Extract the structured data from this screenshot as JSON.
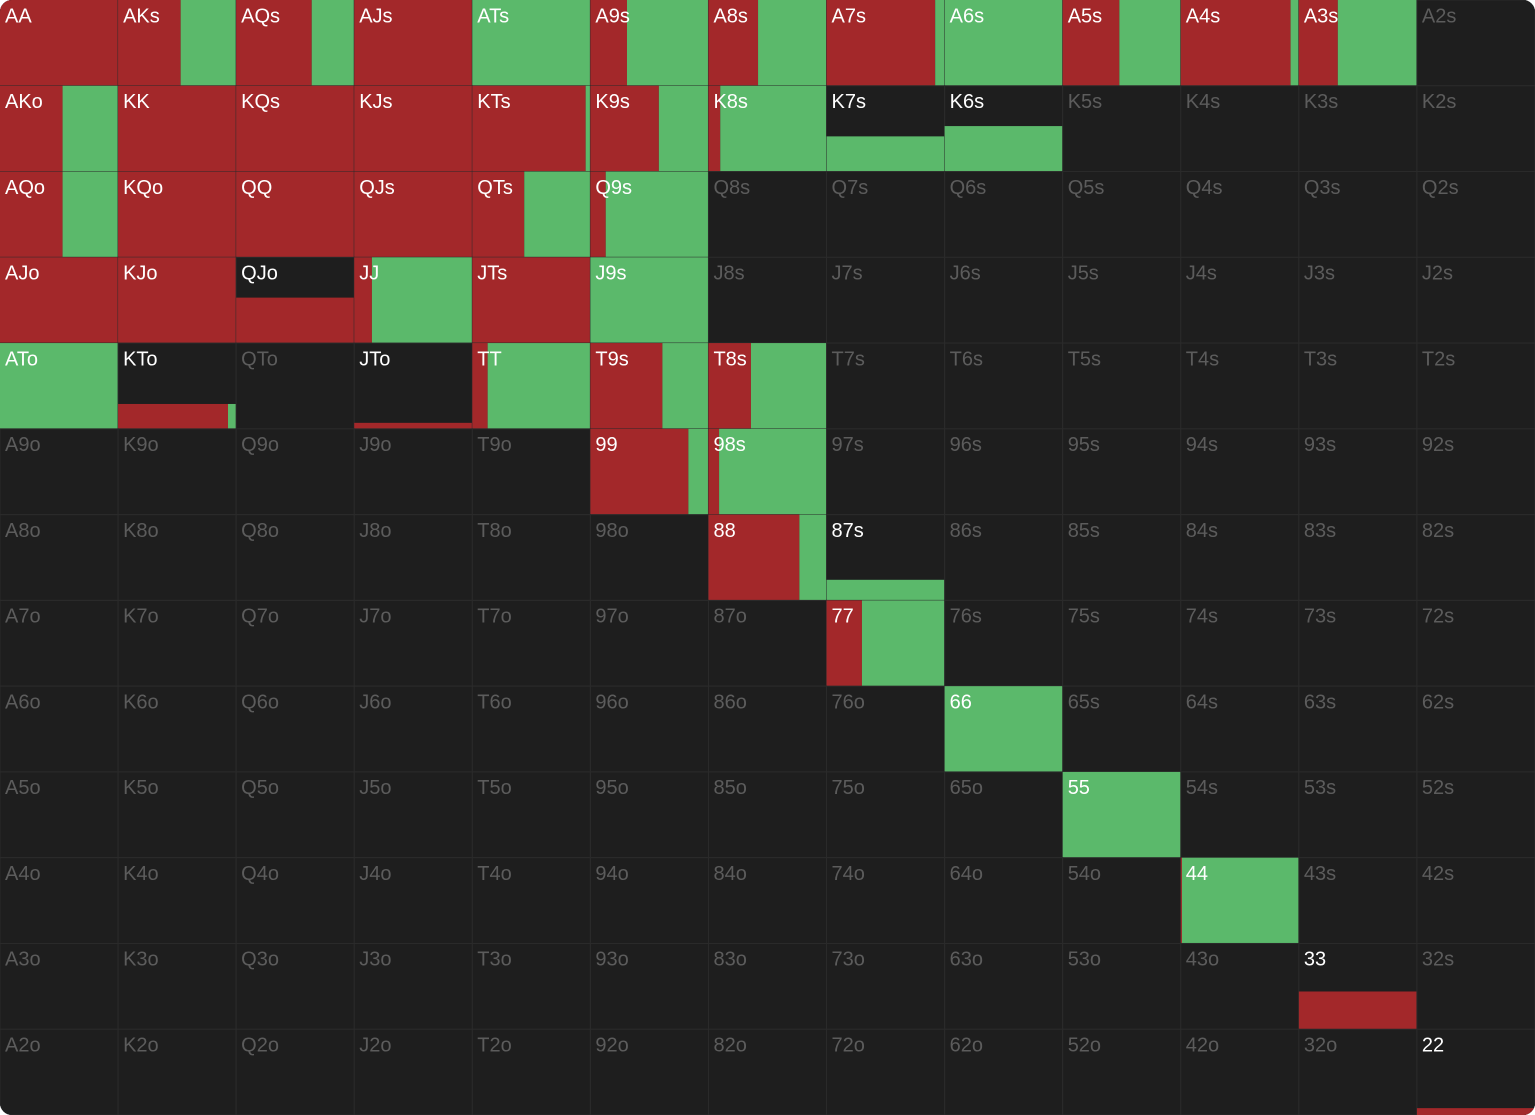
{
  "grid": {
    "labels": [
      [
        "AA",
        "AKs",
        "AQs",
        "AJs",
        "ATs",
        "A9s",
        "A8s",
        "A7s",
        "A6s",
        "A5s",
        "A4s",
        "A3s",
        "A2s"
      ],
      [
        "AKo",
        "KK",
        "KQs",
        "KJs",
        "KTs",
        "K9s",
        "K8s",
        "K7s",
        "K6s",
        "K5s",
        "K4s",
        "K3s",
        "K2s"
      ],
      [
        "AQo",
        "KQo",
        "QQ",
        "QJs",
        "QTs",
        "Q9s",
        "Q8s",
        "Q7s",
        "Q6s",
        "Q5s",
        "Q4s",
        "Q3s",
        "Q2s"
      ],
      [
        "AJo",
        "KJo",
        "QJo",
        "JJ",
        "JTs",
        "J9s",
        "J8s",
        "J7s",
        "J6s",
        "J5s",
        "J4s",
        "J3s",
        "J2s"
      ],
      [
        "ATo",
        "KTo",
        "QTo",
        "JTo",
        "TT",
        "T9s",
        "T8s",
        "T7s",
        "T6s",
        "T5s",
        "T4s",
        "T3s",
        "T2s"
      ],
      [
        "A9o",
        "K9o",
        "Q9o",
        "J9o",
        "T9o",
        "99",
        "98s",
        "97s",
        "96s",
        "95s",
        "94s",
        "93s",
        "92s"
      ],
      [
        "A8o",
        "K8o",
        "Q8o",
        "J8o",
        "T8o",
        "98o",
        "88",
        "87s",
        "86s",
        "85s",
        "84s",
        "83s",
        "82s"
      ],
      [
        "A7o",
        "K7o",
        "Q7o",
        "J7o",
        "T7o",
        "97o",
        "87o",
        "77",
        "76s",
        "75s",
        "74s",
        "73s",
        "72s"
      ],
      [
        "A6o",
        "K6o",
        "Q6o",
        "J6o",
        "T6o",
        "96o",
        "86o",
        "76o",
        "66",
        "65s",
        "64s",
        "63s",
        "62s"
      ],
      [
        "A5o",
        "K5o",
        "Q5o",
        "J5o",
        "T5o",
        "95o",
        "85o",
        "75o",
        "65o",
        "55",
        "54s",
        "53s",
        "52s"
      ],
      [
        "A4o",
        "K4o",
        "Q4o",
        "J4o",
        "T4o",
        "94o",
        "84o",
        "74o",
        "64o",
        "54o",
        "44",
        "43s",
        "42s"
      ],
      [
        "A3o",
        "K3o",
        "Q3o",
        "J3o",
        "T3o",
        "93o",
        "83o",
        "73o",
        "63o",
        "53o",
        "43o",
        "33",
        "32s"
      ],
      [
        "A2o",
        "K2o",
        "Q2o",
        "J2o",
        "T2o",
        "92o",
        "82o",
        "72o",
        "62o",
        "52o",
        "42o",
        "32o",
        "22"
      ]
    ],
    "raise": [
      [
        100,
        53,
        64,
        100,
        0,
        31,
        42,
        92,
        0,
        48,
        93,
        33,
        0
      ],
      [
        53,
        100,
        100,
        100,
        96,
        58,
        10,
        0,
        0,
        0,
        0,
        0,
        0
      ],
      [
        53,
        100,
        100,
        100,
        44,
        13,
        0,
        0,
        0,
        0,
        0,
        0,
        0
      ],
      [
        100,
        100,
        53,
        15,
        100,
        0,
        0,
        0,
        0,
        0,
        0,
        0,
        0
      ],
      [
        0,
        27,
        0,
        7,
        13,
        61,
        36,
        0,
        0,
        0,
        0,
        0,
        0
      ],
      [
        0,
        0,
        0,
        0,
        0,
        83,
        9,
        0,
        0,
        0,
        0,
        0,
        0
      ],
      [
        0,
        0,
        0,
        0,
        0,
        0,
        77,
        0,
        0,
        0,
        0,
        0,
        0
      ],
      [
        0,
        0,
        0,
        0,
        0,
        0,
        0,
        30,
        0,
        0,
        0,
        0,
        0
      ],
      [
        0,
        0,
        0,
        0,
        0,
        0,
        0,
        0,
        0,
        0,
        0,
        0,
        0
      ],
      [
        0,
        0,
        0,
        0,
        0,
        0,
        0,
        0,
        0,
        0,
        0,
        0,
        0
      ],
      [
        0,
        0,
        0,
        0,
        0,
        0,
        0,
        0,
        0,
        0,
        1,
        0,
        0
      ],
      [
        0,
        0,
        0,
        0,
        0,
        0,
        0,
        0,
        0,
        0,
        0,
        44,
        0
      ],
      [
        0,
        0,
        0,
        0,
        0,
        0,
        0,
        0,
        0,
        0,
        0,
        0,
        8
      ]
    ],
    "call": [
      [
        0,
        47,
        36,
        0,
        100,
        69,
        58,
        8,
        100,
        52,
        7,
        67,
        0
      ],
      [
        47,
        0,
        0,
        0,
        4,
        42,
        90,
        41,
        53,
        0,
        0,
        0,
        0
      ],
      [
        47,
        0,
        0,
        0,
        56,
        87,
        0,
        0,
        0,
        0,
        0,
        0,
        0
      ],
      [
        0,
        0,
        0,
        85,
        0,
        100,
        0,
        0,
        0,
        0,
        0,
        0,
        0
      ],
      [
        100,
        2,
        0,
        0,
        87,
        39,
        64,
        0,
        0,
        0,
        0,
        0,
        0
      ],
      [
        0,
        0,
        0,
        0,
        0,
        17,
        91,
        0,
        0,
        0,
        0,
        0,
        0
      ],
      [
        0,
        0,
        0,
        0,
        0,
        0,
        23,
        24,
        0,
        0,
        0,
        0,
        0
      ],
      [
        0,
        0,
        0,
        0,
        0,
        0,
        0,
        70,
        0,
        0,
        0,
        0,
        0
      ],
      [
        0,
        0,
        0,
        0,
        0,
        0,
        0,
        0,
        100,
        0,
        0,
        0,
        0
      ],
      [
        0,
        0,
        0,
        0,
        0,
        0,
        0,
        0,
        0,
        100,
        0,
        0,
        0
      ],
      [
        0,
        0,
        0,
        0,
        0,
        0,
        0,
        0,
        0,
        0,
        99,
        0,
        0
      ],
      [
        0,
        0,
        0,
        0,
        0,
        0,
        0,
        0,
        0,
        0,
        0,
        0,
        0
      ],
      [
        0,
        0,
        0,
        0,
        0,
        0,
        0,
        0,
        0,
        0,
        0,
        0,
        0
      ]
    ]
  }
}
